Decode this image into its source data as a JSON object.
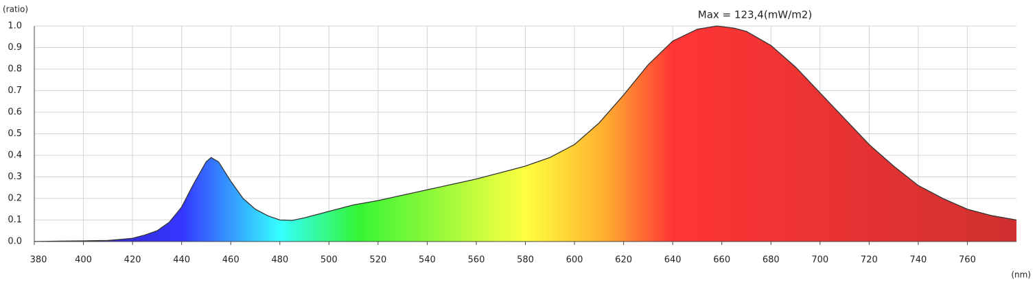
{
  "chart_data": {
    "type": "area",
    "annotation": "Max = 123,4(mW/m2)",
    "y_label": "(ratio)",
    "x_label": "(nm)",
    "x": [
      380,
      390,
      400,
      410,
      415,
      420,
      425,
      430,
      435,
      440,
      445,
      450,
      452,
      455,
      460,
      465,
      470,
      475,
      480,
      485,
      490,
      495,
      500,
      510,
      520,
      530,
      540,
      550,
      560,
      570,
      580,
      590,
      600,
      610,
      620,
      630,
      640,
      650,
      658,
      665,
      670,
      680,
      690,
      700,
      710,
      720,
      730,
      740,
      750,
      760,
      770,
      780
    ],
    "values": [
      0.0,
      0.002,
      0.003,
      0.005,
      0.01,
      0.015,
      0.03,
      0.05,
      0.09,
      0.16,
      0.27,
      0.37,
      0.39,
      0.37,
      0.28,
      0.2,
      0.15,
      0.12,
      0.1,
      0.098,
      0.11,
      0.125,
      0.14,
      0.17,
      0.19,
      0.215,
      0.24,
      0.265,
      0.29,
      0.32,
      0.35,
      0.39,
      0.45,
      0.55,
      0.68,
      0.82,
      0.93,
      0.985,
      1.0,
      0.99,
      0.975,
      0.91,
      0.81,
      0.69,
      0.57,
      0.45,
      0.35,
      0.26,
      0.2,
      0.15,
      0.12,
      0.1
    ],
    "color": "#333333",
    "xlim": [
      380,
      780
    ],
    "xticks": [
      380,
      400,
      420,
      440,
      460,
      480,
      500,
      520,
      540,
      560,
      580,
      600,
      620,
      640,
      660,
      680,
      700,
      720,
      740,
      760
    ],
    "ylim": [
      0,
      1
    ],
    "yticks": [
      {
        "value": 0,
        "label": "0.0"
      },
      0.1,
      0.2,
      0.3,
      0.4,
      0.5,
      0.6,
      0.7,
      0.8,
      0.9,
      {
        "value": 1,
        "label": "1.0"
      }
    ],
    "grid": true
  }
}
